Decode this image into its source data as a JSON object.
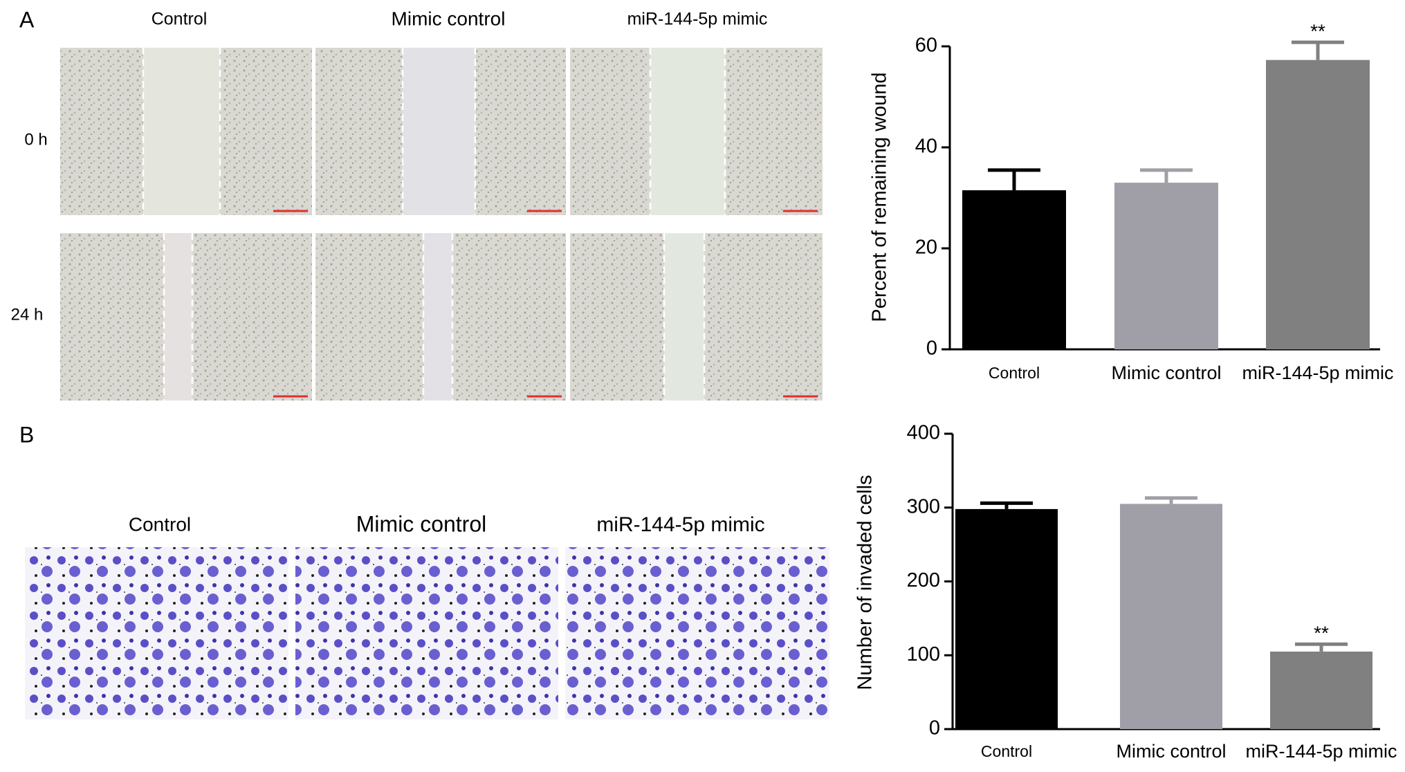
{
  "figure": {
    "panels": [
      "A",
      "B"
    ],
    "wound_columns": [
      "Control",
      "Mimic control",
      "miR-144-5p mimic"
    ],
    "wound_rows": [
      "0 h",
      "24 h"
    ],
    "invasion_columns": [
      "Control",
      "Mimic control",
      "miR-144-5p mimic"
    ]
  },
  "chart_data": [
    {
      "type": "bar",
      "ylabel": "Percent of remaining wound",
      "categories": [
        "Control",
        "Mimic control",
        "miR-144-5p mimic"
      ],
      "values": [
        31.5,
        33,
        57.3
      ],
      "errors": [
        4,
        2.5,
        3.5
      ],
      "colors": [
        "#000000",
        "#a09fa8",
        "#808080"
      ],
      "significance": [
        null,
        null,
        "**"
      ],
      "ylim": [
        0,
        60
      ],
      "yticks": [
        0,
        20,
        40,
        60
      ]
    },
    {
      "type": "bar",
      "ylabel": "Number of invaded cells",
      "categories": [
        "Control",
        "Mimic control",
        "miR-144-5p mimic"
      ],
      "values": [
        298,
        305,
        105
      ],
      "errors": [
        8,
        8,
        10
      ],
      "colors": [
        "#000000",
        "#a09fa8",
        "#808080"
      ],
      "significance": [
        null,
        null,
        "**"
      ],
      "ylim": [
        0,
        400
      ],
      "yticks": [
        0,
        100,
        200,
        300,
        400
      ]
    }
  ]
}
